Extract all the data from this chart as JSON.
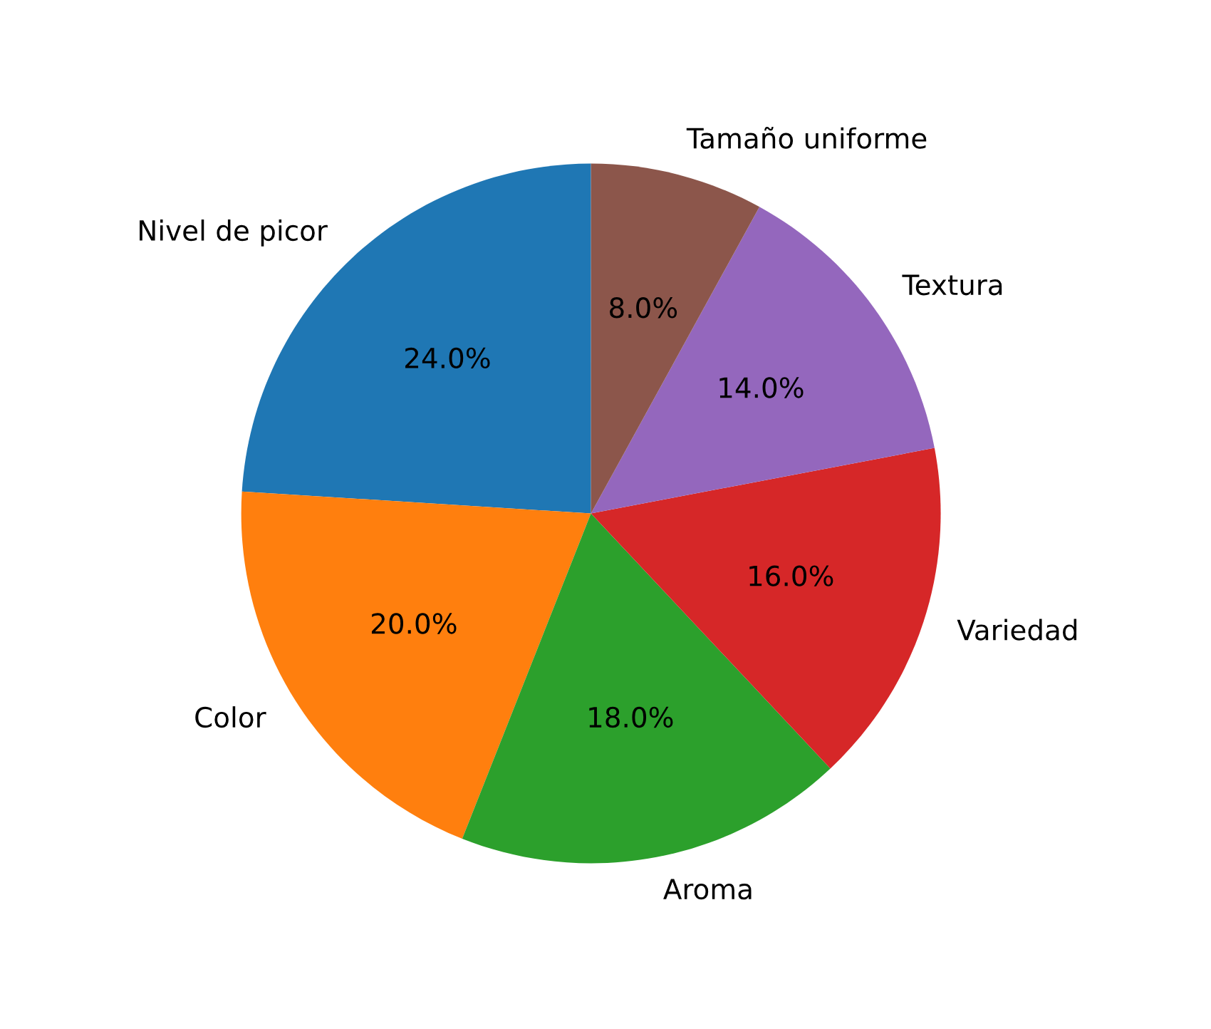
{
  "chart_data": {
    "type": "pie",
    "categories": [
      "Nivel de picor",
      "Color",
      "Aroma",
      "Variedad",
      "Textura",
      "Tamaño uniforme"
    ],
    "values": [
      24,
      20,
      18,
      16,
      14,
      8
    ],
    "value_labels": [
      "24.0%",
      "20.0%",
      "18.0%",
      "16.0%",
      "14.0%",
      "8.0%"
    ],
    "colors": [
      "#1f77b4",
      "#ff7f0e",
      "#2ca02c",
      "#d62728",
      "#9467bd",
      "#8c564b"
    ],
    "legend": false
  }
}
